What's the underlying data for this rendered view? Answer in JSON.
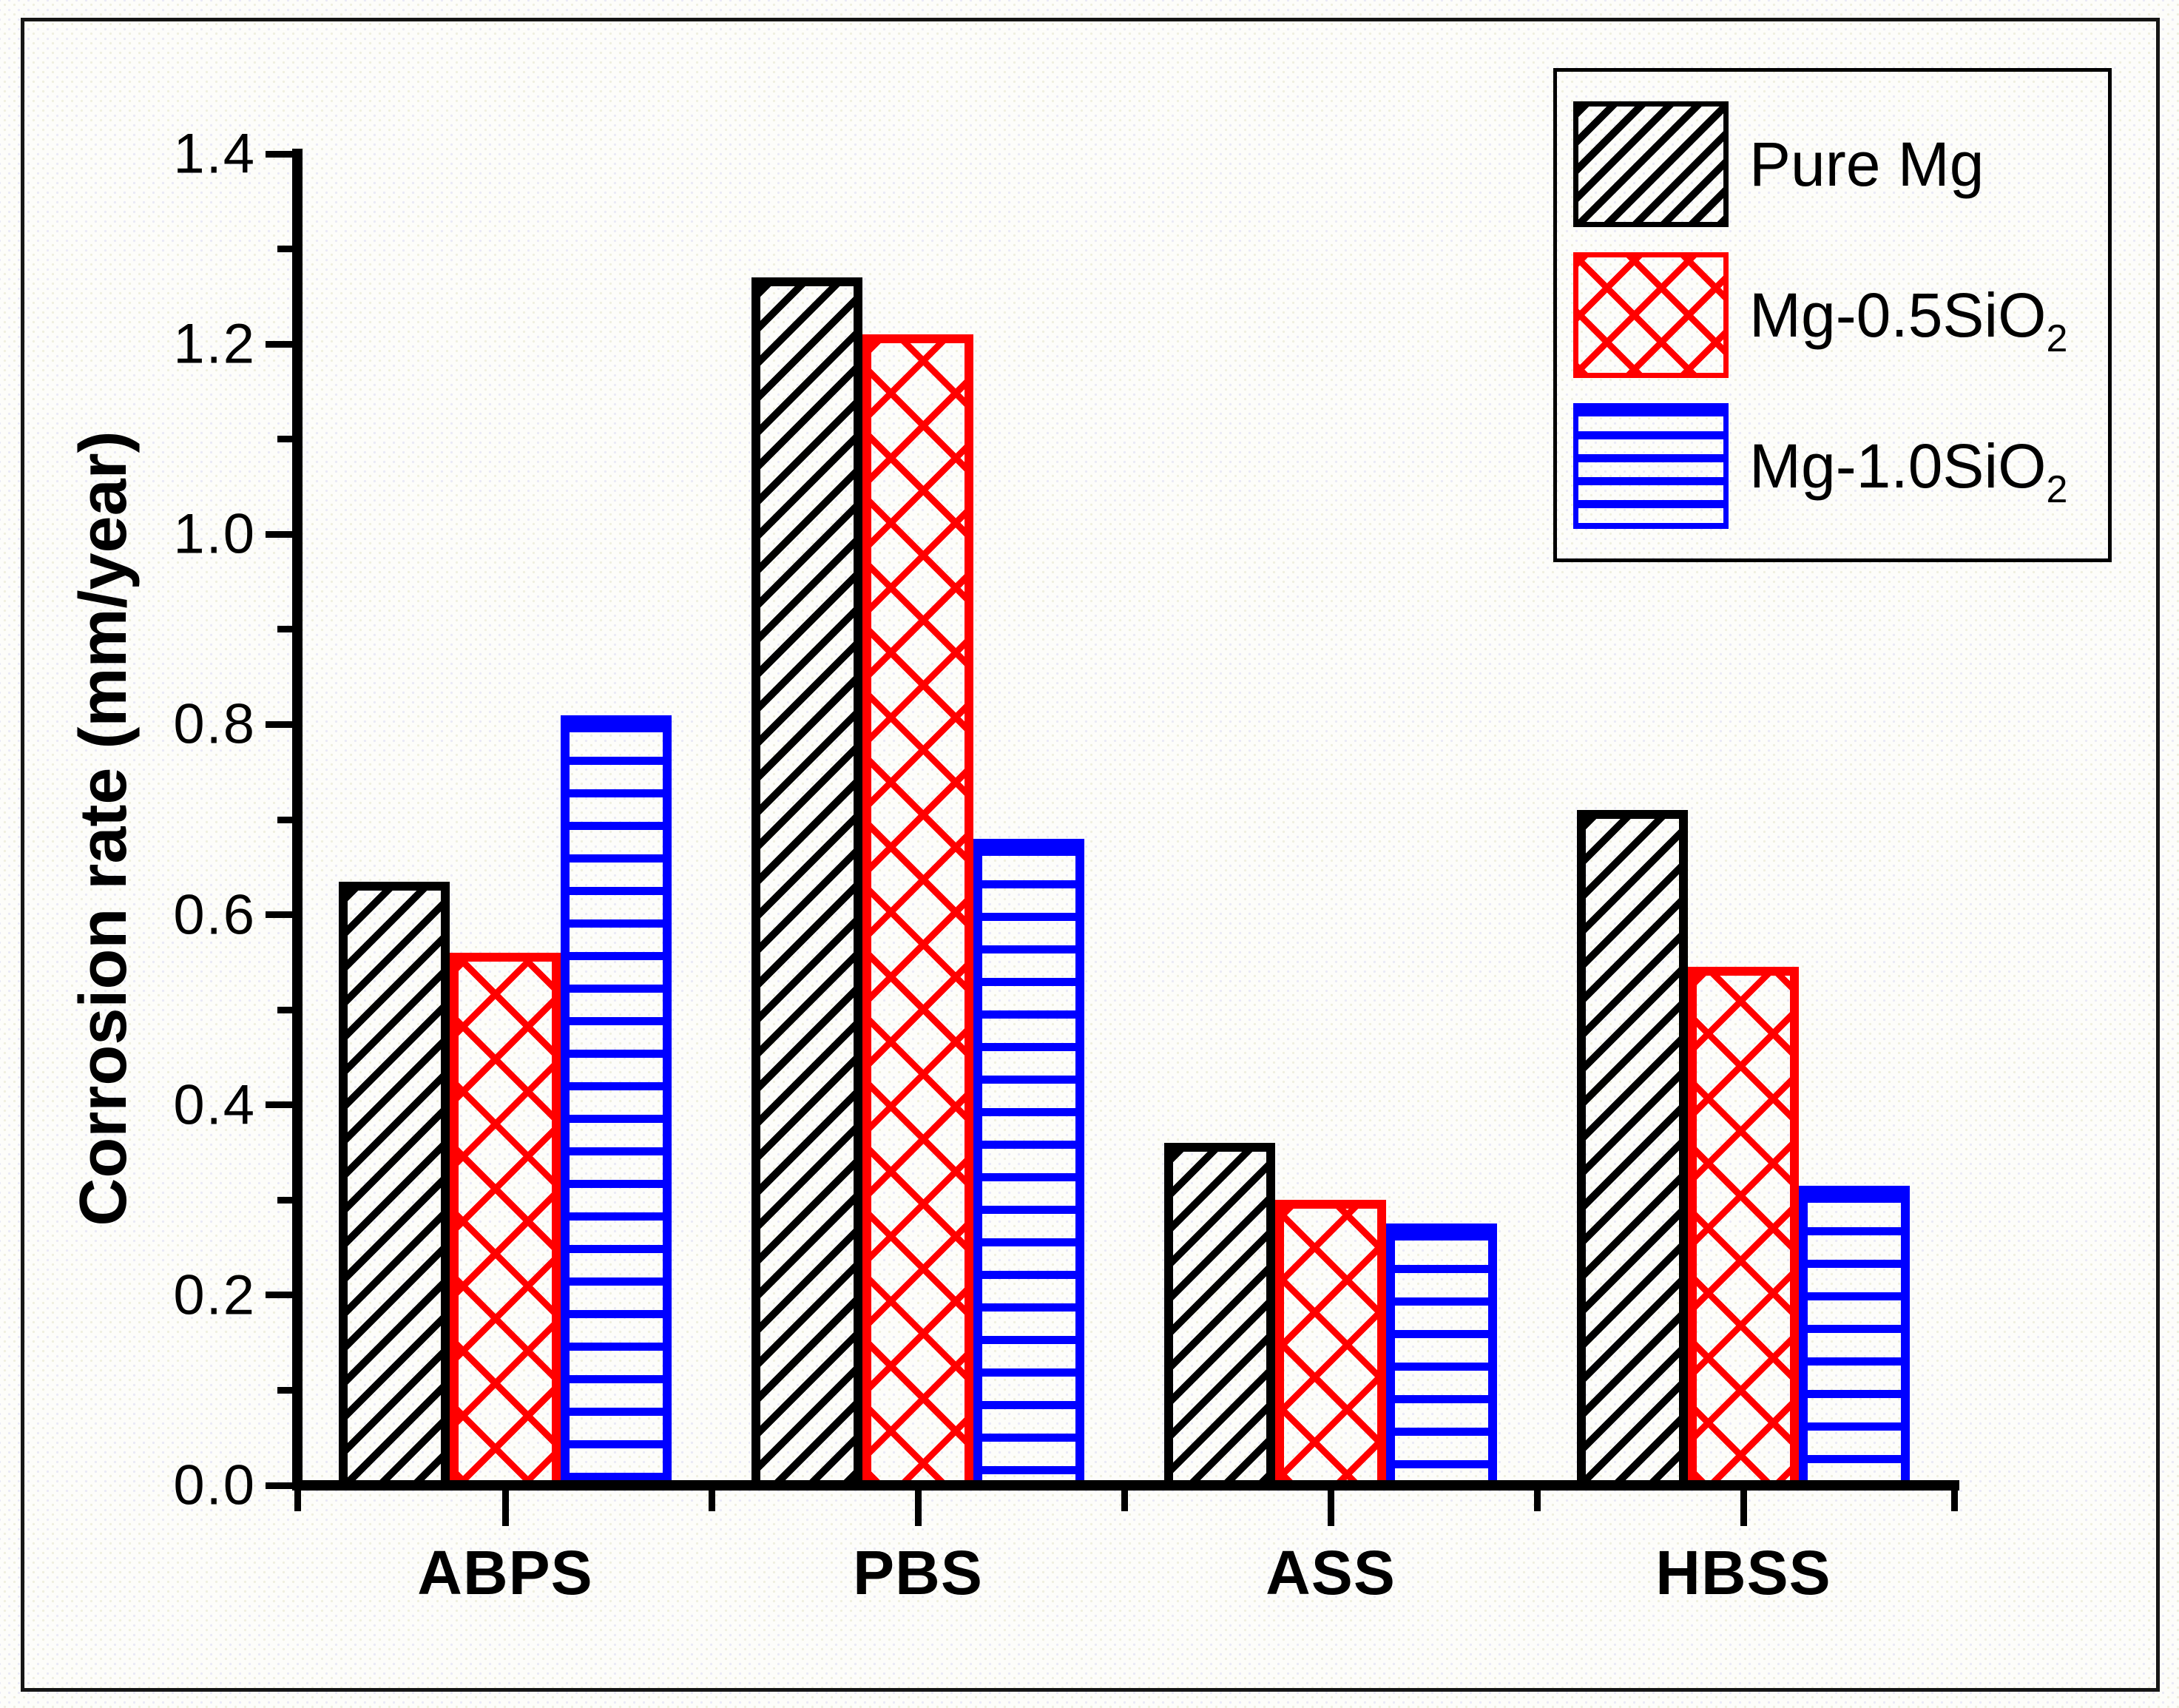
{
  "figure": {
    "background": "#fdfdfa",
    "border_color": "#151515"
  },
  "chart_data": {
    "type": "bar",
    "title": "",
    "categories": [
      "ABPS",
      "PBS",
      "ASS",
      "HBSS"
    ],
    "series": [
      {
        "name": "Pure Mg",
        "label": "Pure Mg",
        "label_sub": "",
        "color": "#000000",
        "pattern": "diagonal-hatch",
        "values": [
          0.635,
          1.27,
          0.36,
          0.71
        ]
      },
      {
        "name": "Mg-0.5SiO2",
        "label": "Mg-0.5SiO",
        "label_sub": "2",
        "color": "#ff0000",
        "pattern": "crosshatch",
        "values": [
          0.56,
          1.21,
          0.3,
          0.545
        ]
      },
      {
        "name": "Mg-1.0SiO2",
        "label": "Mg-1.0SiO",
        "label_sub": "2",
        "color": "#0000ff",
        "pattern": "horizontal-lines",
        "values": [
          0.81,
          0.68,
          0.275,
          0.315
        ]
      }
    ],
    "xlabel": "",
    "ylabel": "Corrosion rate (mm/year)",
    "ylim": [
      0.0,
      1.4
    ],
    "ytick_step": 0.2,
    "ytick_minor_step": 0.1,
    "ytick_labels": [
      "0.0",
      "0.2",
      "0.4",
      "0.6",
      "0.8",
      "1.0",
      "1.2",
      "1.4"
    ],
    "grid": false,
    "legend_position": "top-right"
  }
}
